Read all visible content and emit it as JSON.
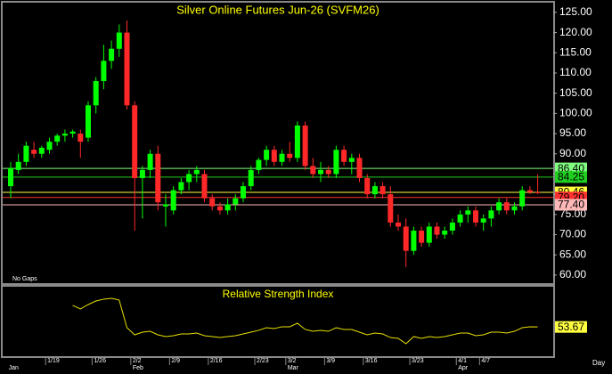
{
  "chart_data": [
    {
      "type": "candlestick",
      "title": "Silver Online Futures Jun-26 (SVFM26)",
      "note": "No Gaps",
      "interval": "Day",
      "categories": [
        null,
        null,
        null,
        null,
        null,
        "1/19",
        null,
        null,
        null,
        null,
        null,
        "1/26",
        null,
        null,
        null,
        null,
        "2/2",
        null,
        null,
        null,
        null,
        "2/9",
        null,
        null,
        null,
        null,
        "2/16",
        null,
        null,
        null,
        null,
        null,
        "2/23",
        null,
        null,
        null,
        "3/2",
        null,
        null,
        null,
        null,
        "3/9",
        null,
        null,
        null,
        null,
        "3/16",
        null,
        null,
        null,
        null,
        null,
        "3/23",
        null,
        null,
        null,
        null,
        null,
        "4/1",
        null,
        null,
        "4/7",
        null,
        null,
        null,
        null,
        null,
        null,
        null
      ],
      "month_ticks": [
        {
          "value": 0,
          "label": "Jan"
        },
        {
          "value": 16,
          "label": "Feb"
        },
        {
          "value": 36,
          "label": "Mar"
        },
        {
          "value": 58,
          "label": "Apr"
        }
      ],
      "open": [
        82,
        86,
        88,
        91,
        90,
        91,
        93,
        94.5,
        95,
        95,
        94,
        102,
        108,
        113,
        116,
        120,
        102,
        84,
        86,
        90,
        77,
        76,
        81,
        83,
        85,
        85,
        79,
        77,
        76,
        77.5,
        79,
        82,
        86,
        88.5,
        91,
        88,
        90,
        89,
        97,
        87,
        85,
        86,
        85,
        91,
        88,
        89,
        84,
        80,
        82,
        80,
        73,
        72,
        66,
        71,
        68,
        72,
        70,
        71,
        73,
        75,
        76,
        73,
        74,
        76,
        78,
        76,
        77,
        81,
        80.5
      ],
      "high": [
        88,
        90,
        93,
        93,
        92,
        94,
        95,
        96,
        96,
        96,
        103,
        109,
        117,
        118,
        122,
        123,
        103,
        87,
        91,
        92,
        80,
        82,
        84,
        86,
        87,
        86,
        80,
        78,
        79,
        80,
        83,
        87,
        89,
        92,
        92,
        91,
        93,
        98,
        98,
        89,
        88,
        87,
        92,
        92,
        90,
        90,
        85,
        83,
        83,
        82,
        75,
        74,
        72,
        72,
        73,
        73,
        72,
        74,
        76,
        77,
        77,
        75,
        77,
        79,
        79,
        78,
        82,
        82,
        85
      ],
      "low": [
        79,
        85,
        87,
        89,
        89,
        90,
        92,
        93,
        94,
        89,
        93,
        100,
        106,
        111,
        114,
        101,
        71,
        74,
        84,
        76,
        72,
        75,
        80,
        81,
        83,
        78,
        76,
        75,
        75,
        76,
        78,
        81,
        85,
        87,
        87,
        87,
        88,
        88,
        86,
        84,
        83,
        84,
        84,
        87,
        85,
        83,
        79,
        79,
        79,
        72,
        71,
        62,
        65,
        67,
        67,
        69,
        69,
        70,
        72,
        73,
        72,
        71,
        72,
        75,
        75,
        75,
        76,
        80,
        80
      ],
      "close": [
        86.5,
        88,
        92,
        90,
        91.5,
        93,
        94.5,
        95,
        95.5,
        93,
        102,
        108,
        113,
        116,
        120,
        102,
        84,
        86,
        90,
        78,
        77.5,
        81,
        83,
        85,
        86,
        79,
        77,
        76,
        77.5,
        79,
        82,
        86,
        88.5,
        91,
        88,
        90,
        89,
        97,
        87,
        85,
        86,
        85,
        91,
        88,
        89,
        84,
        80,
        82,
        80,
        73,
        72,
        66,
        71,
        68,
        72,
        70,
        71,
        73,
        75,
        76,
        73,
        74,
        76,
        78,
        76,
        77,
        81,
        80.5,
        80.46
      ],
      "up_color": "#00ff00",
      "down_color": "#ff2828",
      "ylim": [
        58,
        127.4
      ],
      "yticks": [
        {
          "value": 125,
          "label": "125.00"
        },
        {
          "value": 120,
          "label": "120.00"
        },
        {
          "value": 115,
          "label": "115.00"
        },
        {
          "value": 110,
          "label": "110.00"
        },
        {
          "value": 105,
          "label": "105.00"
        },
        {
          "value": 100,
          "label": "100.00"
        },
        {
          "value": 95,
          "label": "95.00"
        },
        {
          "value": 90,
          "label": "90.00"
        },
        {
          "value": 85,
          "label": "85.00"
        },
        {
          "value": 80,
          "label": "80.00"
        },
        {
          "value": 75,
          "label": "75.00"
        },
        {
          "value": 70,
          "label": "70.00"
        },
        {
          "value": 65,
          "label": "65.00"
        },
        {
          "value": 60,
          "label": "60.00"
        }
      ],
      "price_lines": [
        {
          "value": 86.4,
          "label": "86.40",
          "color": "#80ff80"
        },
        {
          "value": 84.25,
          "label": "84.25",
          "color": "#20d020"
        },
        {
          "value": 80.46,
          "label": "80.46",
          "color": "#ffff40"
        },
        {
          "value": 79.2,
          "label": "79.20",
          "color": "#ff3030"
        },
        {
          "value": 77.4,
          "label": "77.40",
          "color": "#ffb8b8"
        }
      ]
    },
    {
      "type": "line",
      "title": "Relative Strength Index",
      "color": "#e8e000",
      "ylim": [
        20,
        100
      ],
      "values": [
        null,
        null,
        null,
        null,
        null,
        null,
        null,
        null,
        78.5,
        74.4,
        79.5,
        83.6,
        85.7,
        86.7,
        84.6,
        52.8,
        44.6,
        47.7,
        48.7,
        44.6,
        42.6,
        43.6,
        45.6,
        45.6,
        46.7,
        43.6,
        42.6,
        41.5,
        42.6,
        43.6,
        45.6,
        47.7,
        49.8,
        52.8,
        51.8,
        53.9,
        53.9,
        58,
        50.8,
        48.7,
        49.8,
        48.7,
        52.8,
        50.8,
        50.8,
        47.7,
        44.6,
        46.7,
        45.6,
        41.5,
        40.5,
        34.4,
        42.6,
        40.5,
        42.6,
        41.5,
        42.6,
        44.6,
        46.7,
        46.7,
        43.6,
        44.6,
        47.7,
        47.7,
        46.7,
        48.7,
        52.8,
        53.9,
        53.67
      ],
      "last": {
        "value": 53.67,
        "label": "53.67"
      }
    }
  ]
}
